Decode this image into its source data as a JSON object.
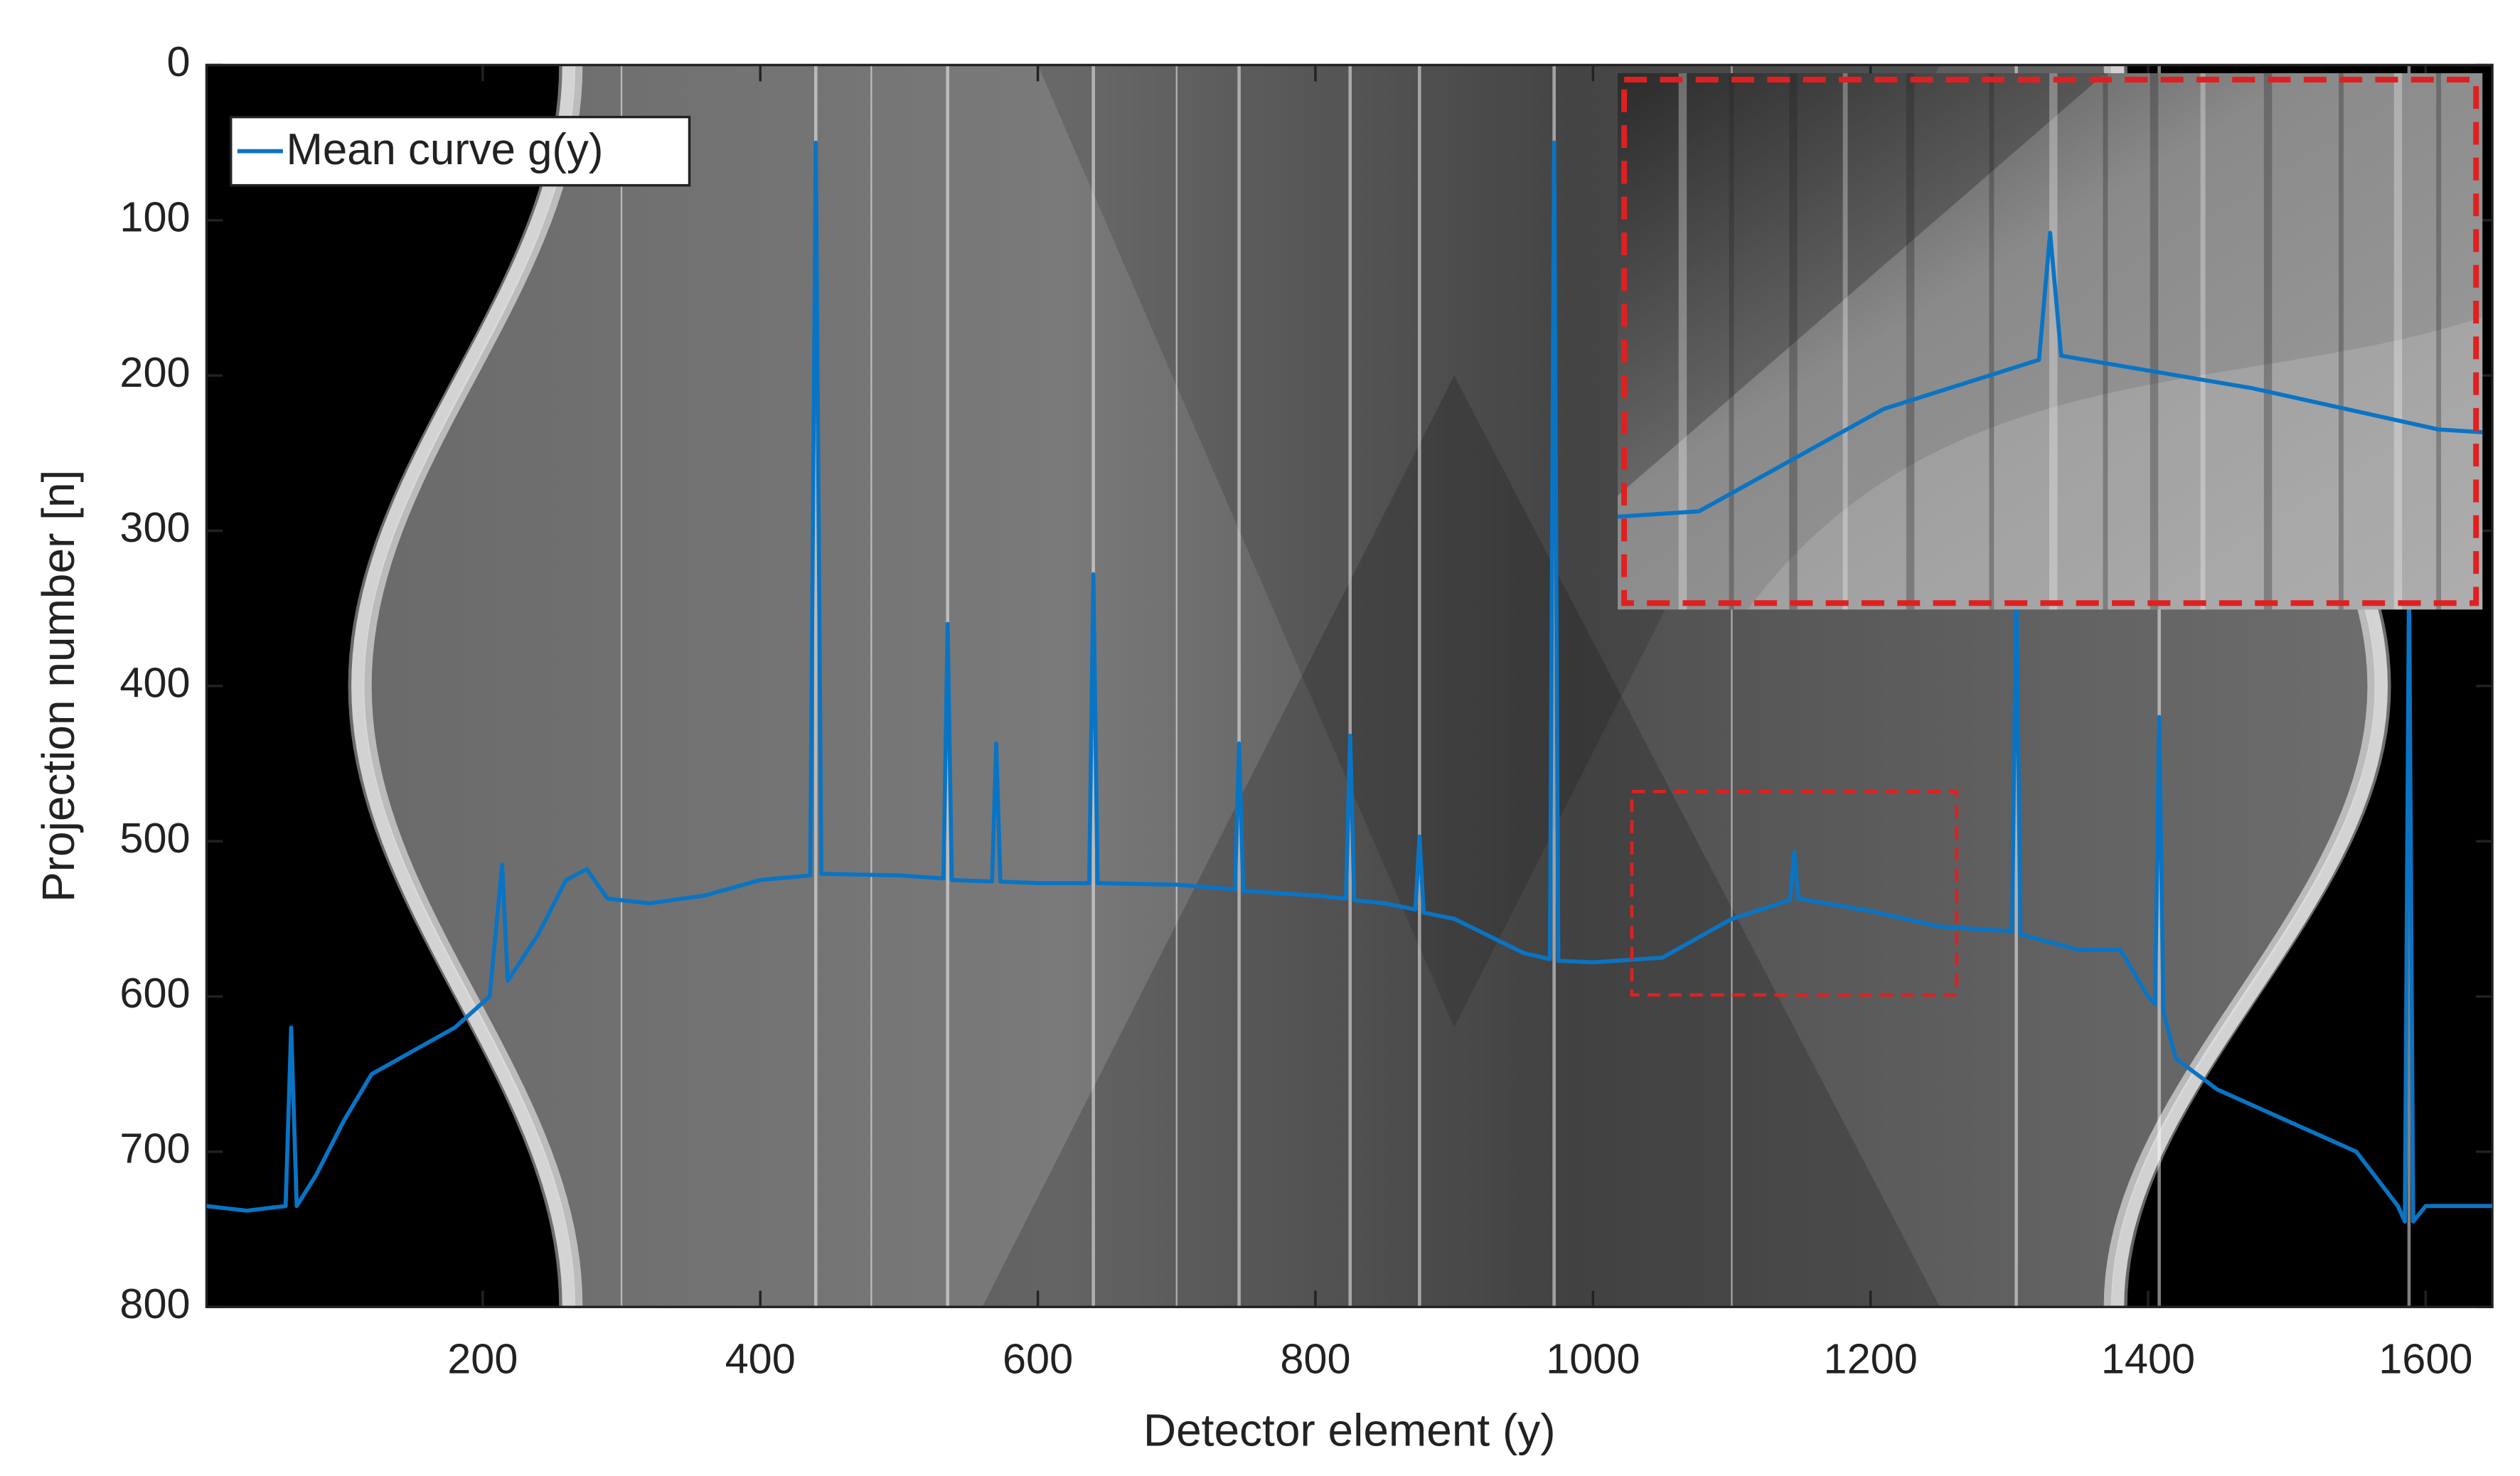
{
  "chart_data": {
    "type": "line",
    "xlabel": "Detector element (y)",
    "ylabel": "Projection number [n]",
    "x": [
      1,
      30,
      58,
      62,
      66,
      80,
      100,
      120,
      150,
      180,
      205,
      214,
      218,
      240,
      260,
      275,
      290,
      320,
      360,
      400,
      436,
      440,
      444,
      500,
      532,
      535,
      538,
      567,
      570,
      573,
      600,
      637,
      640,
      643,
      700,
      742,
      745,
      748,
      800,
      822,
      825,
      828,
      850,
      872,
      875,
      878,
      900,
      950,
      969,
      972,
      975,
      1000,
      1050,
      1100,
      1142,
      1145,
      1148,
      1200,
      1250,
      1302,
      1305,
      1308,
      1350,
      1380,
      1400,
      1405,
      1408,
      1411,
      1420,
      1450,
      1500,
      1550,
      1580,
      1585,
      1588,
      1591,
      1600,
      1648
    ],
    "series": [
      {
        "name": "Mean curve g(y)",
        "color": "#0a74c4",
        "values": [
          735,
          738,
          735,
          620,
          735,
          715,
          680,
          650,
          635,
          620,
          600,
          515,
          590,
          560,
          525,
          518,
          537,
          540,
          535,
          525,
          522,
          50,
          521,
          522,
          524,
          360,
          525,
          526,
          437,
          526,
          527,
          527,
          328,
          527,
          528,
          531,
          437,
          532,
          535,
          537,
          432,
          538,
          540,
          544,
          497,
          546,
          550,
          572,
          576,
          50,
          577,
          578,
          575,
          550,
          538,
          507,
          537,
          545,
          555,
          558,
          330,
          560,
          570,
          570,
          600,
          605,
          420,
          610,
          640,
          660,
          680,
          700,
          735,
          745,
          330,
          745,
          735,
          735
        ]
      }
    ],
    "xlim": [
      1,
      1648
    ],
    "ylim": [
      0,
      800
    ],
    "y_direction": "reverse",
    "xticks": [
      200,
      400,
      600,
      800,
      1000,
      1200,
      1400,
      1600
    ],
    "yticks": [
      0,
      100,
      200,
      300,
      400,
      500,
      600,
      700,
      800
    ],
    "legend": "upper left",
    "inset_xlim": [
      1028,
      1262
    ],
    "inset_ylim": [
      468,
      599
    ],
    "inset_color": "#e02020"
  }
}
